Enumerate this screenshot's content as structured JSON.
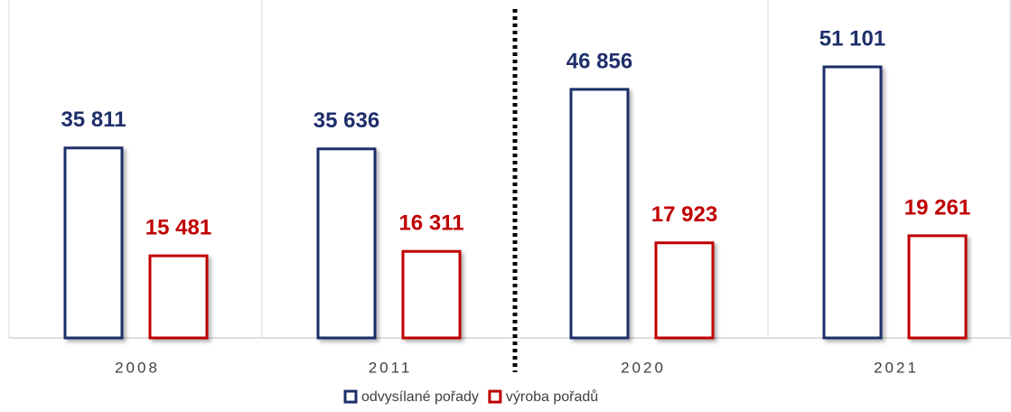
{
  "chart_data": {
    "type": "bar",
    "categories": [
      "2008",
      "2011",
      "2020",
      "2021"
    ],
    "series": [
      {
        "name": "odvysílané pořady",
        "color": "#1f2f6b",
        "values": [
          35811,
          35636,
          46856,
          51101
        ],
        "value_labels": [
          "35 811",
          "35 636",
          "46 856",
          "51 101"
        ]
      },
      {
        "name": "výroba pořadů",
        "color": "#c00000",
        "values": [
          15481,
          16311,
          17923,
          19261
        ],
        "value_labels": [
          "15 481",
          "16 311",
          "17 923",
          "19 261"
        ]
      }
    ]
  }
}
